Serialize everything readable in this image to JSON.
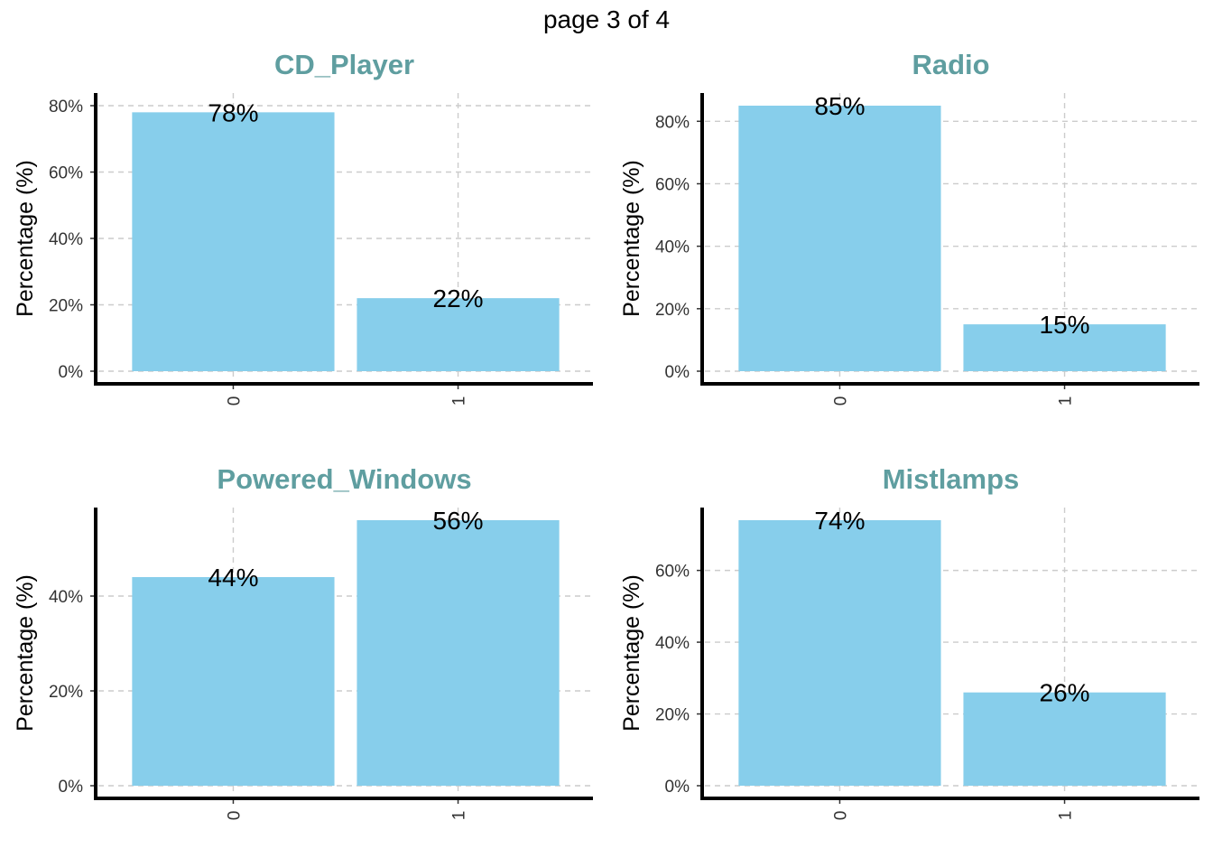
{
  "page": {
    "title": "page 3 of 4"
  },
  "colors": {
    "bar": "#87CEEB",
    "panel_title": "#5F9EA0"
  },
  "chart_data": [
    {
      "type": "bar",
      "title": "CD_Player",
      "ylabel": "Percentage (%)",
      "categories": [
        "0",
        "1"
      ],
      "values": [
        78,
        22
      ],
      "value_labels": [
        "78%",
        "22%"
      ],
      "ylim": [
        0,
        80
      ],
      "yticks": [
        0,
        20,
        40,
        60,
        80
      ],
      "ytick_labels": [
        "0%",
        "20%",
        "40%",
        "60%",
        "80%"
      ],
      "grid": true
    },
    {
      "type": "bar",
      "title": "Radio",
      "ylabel": "Percentage (%)",
      "categories": [
        "0",
        "1"
      ],
      "values": [
        85,
        15
      ],
      "value_labels": [
        "85%",
        "15%"
      ],
      "ylim": [
        0,
        85
      ],
      "yticks": [
        0,
        20,
        40,
        60,
        80
      ],
      "ytick_labels": [
        "0%",
        "20%",
        "40%",
        "60%",
        "80%"
      ],
      "grid": true
    },
    {
      "type": "bar",
      "title": "Powered_Windows",
      "ylabel": "Percentage (%)",
      "categories": [
        "0",
        "1"
      ],
      "values": [
        44,
        56
      ],
      "value_labels": [
        "44%",
        "56%"
      ],
      "ylim": [
        0,
        56
      ],
      "yticks": [
        0,
        20,
        40
      ],
      "ytick_labels": [
        "0%",
        "20%",
        "40%"
      ],
      "grid": true
    },
    {
      "type": "bar",
      "title": "Mistlamps",
      "ylabel": "Percentage (%)",
      "categories": [
        "0",
        "1"
      ],
      "values": [
        74,
        26
      ],
      "value_labels": [
        "74%",
        "26%"
      ],
      "ylim": [
        0,
        74
      ],
      "yticks": [
        0,
        20,
        40,
        60
      ],
      "ytick_labels": [
        "0%",
        "20%",
        "40%",
        "60%"
      ],
      "grid": true
    }
  ]
}
